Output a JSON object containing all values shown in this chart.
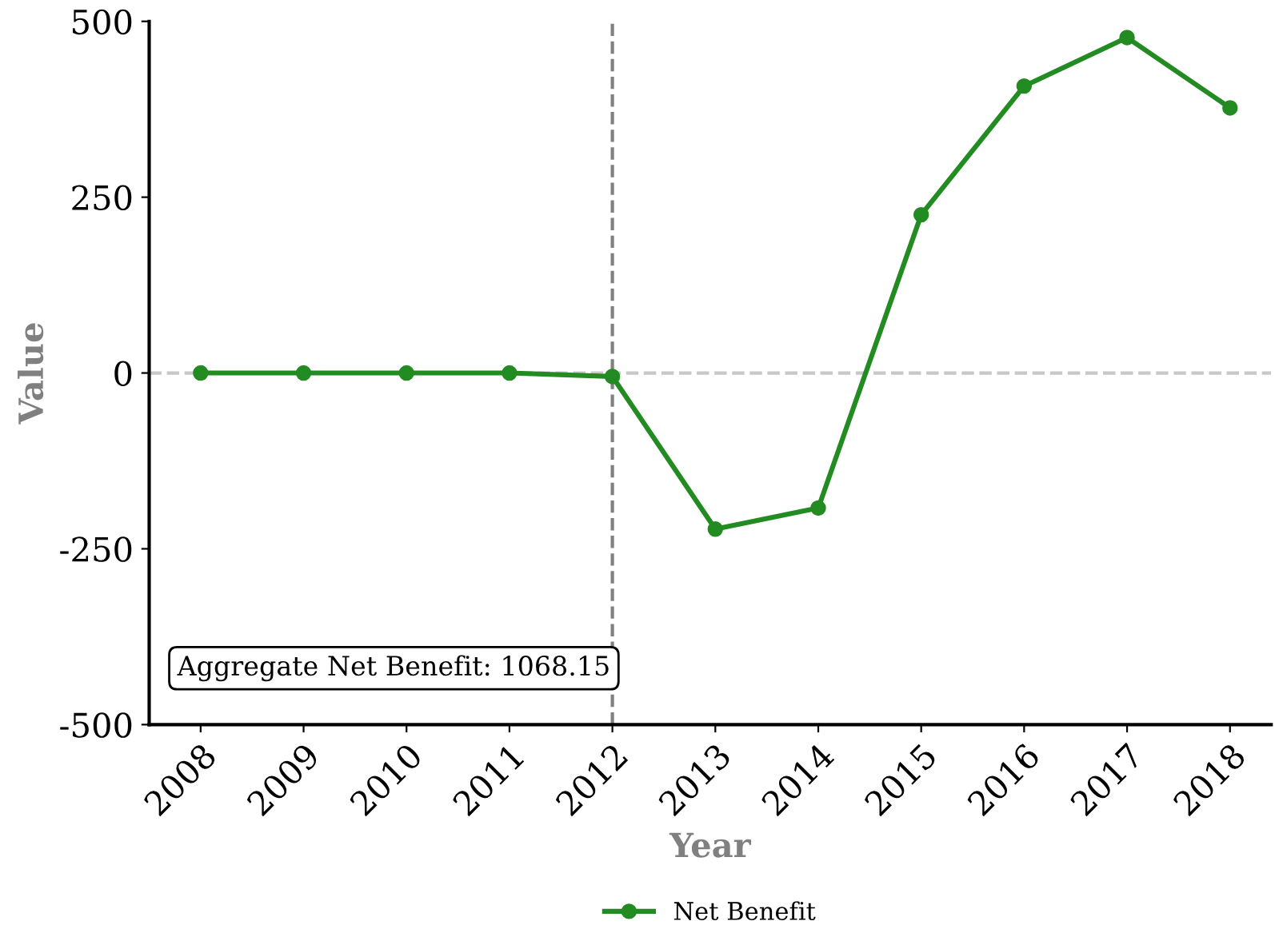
{
  "chart_data": {
    "type": "line",
    "xlabel": "Year",
    "ylabel": "Value",
    "x": [
      2008,
      2009,
      2010,
      2011,
      2012,
      2013,
      2014,
      2015,
      2016,
      2017,
      2018
    ],
    "series": [
      {
        "name": "Net Benefit",
        "color": "#228b22",
        "values": [
          0,
          0,
          0,
          0,
          -5,
          -222,
          -192,
          225,
          408,
          477,
          377
        ]
      }
    ],
    "xlim": [
      2007.5,
      2018.4
    ],
    "xticks": [
      2008,
      2009,
      2010,
      2011,
      2012,
      2013,
      2014,
      2015,
      2016,
      2017,
      2018
    ],
    "ylim": [
      -500,
      500
    ],
    "yticks": [
      -500,
      -250,
      0,
      250,
      500
    ],
    "ref_lines": [
      {
        "axis": "x",
        "value": 2012,
        "color": "#808080",
        "line_style": "dashed"
      },
      {
        "axis": "y",
        "value": 0,
        "color": "#c8c8c8",
        "line_style": "dashed"
      }
    ],
    "annotations": [
      "Aggregate Net Benefit: 1068.15"
    ],
    "marker": "circle",
    "line_style": "solid",
    "grid": false,
    "legend": "bottom"
  }
}
